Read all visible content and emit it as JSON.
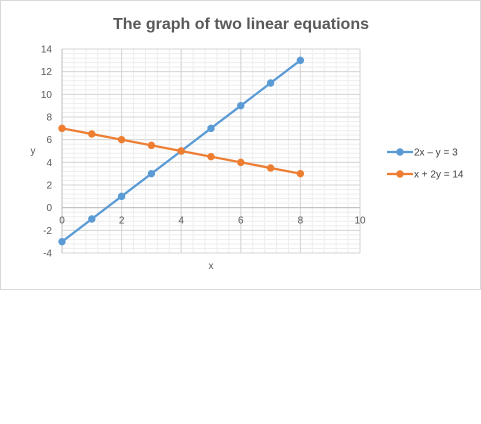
{
  "chart_data": {
    "type": "line",
    "title": "The graph of two linear equations",
    "xlabel": "x",
    "ylabel": "y",
    "xlim": [
      0,
      10
    ],
    "ylim": [
      -4,
      14
    ],
    "x_ticks": [
      0,
      2,
      4,
      6,
      8,
      10
    ],
    "y_ticks": [
      -4,
      -2,
      0,
      2,
      4,
      6,
      8,
      10,
      12,
      14
    ],
    "grid": true,
    "minor_grid": true,
    "legend_position": "right",
    "series": [
      {
        "name": "2x – y = 3",
        "color": "#5b9bd5",
        "x": [
          0,
          1,
          2,
          3,
          4,
          5,
          6,
          7,
          8
        ],
        "y": [
          -3,
          -1,
          1,
          3,
          5,
          7,
          9,
          11,
          13
        ]
      },
      {
        "name": "x + 2y = 14",
        "color": "#ed7d31",
        "x": [
          0,
          1,
          2,
          3,
          4,
          5,
          6,
          7,
          8
        ],
        "y": [
          7,
          6.5,
          6,
          5.5,
          5,
          4.5,
          4,
          3.5,
          3
        ]
      }
    ]
  }
}
